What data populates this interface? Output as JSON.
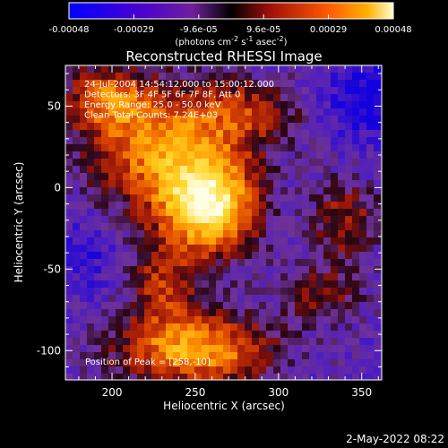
{
  "colorbar": {
    "tick_labels": [
      "-0.00048",
      "-0.00029",
      "-9.6e-05",
      "9.6e-05",
      "0.00029",
      "0.00048"
    ],
    "unit_parts": [
      "(photons cm",
      "-2",
      " s",
      "-1",
      " asec",
      "-2",
      ")"
    ]
  },
  "chart_data": {
    "type": "heatmap",
    "title": "Reconstructed RHESSI Image",
    "xlabel": "Heliocentric X (arcsec)",
    "ylabel": "Heliocentric Y (arcsec)",
    "xlim": [
      172,
      362
    ],
    "ylim": [
      -118,
      75
    ],
    "x_ticks": [
      200,
      250,
      300,
      350
    ],
    "y_ticks": [
      50,
      0,
      -50,
      -100
    ],
    "colorbar_range": [
      -0.00048,
      0.00048
    ],
    "info_lines": [
      "24-Jul-2004 14:54:12.000 to 15:00:12.000",
      "Detectors: 3F 4F 5F 6F 7F 8F, Att 0",
      "Energy Range: 25.0 - 50.0 keV",
      "Clean     Total Counts: 7.24E+03"
    ],
    "peak_label": "Position of Peak = [258,-10]",
    "peak": [
      258,
      -10
    ]
  },
  "footer": {
    "date": "2-May-2022 08:22"
  }
}
